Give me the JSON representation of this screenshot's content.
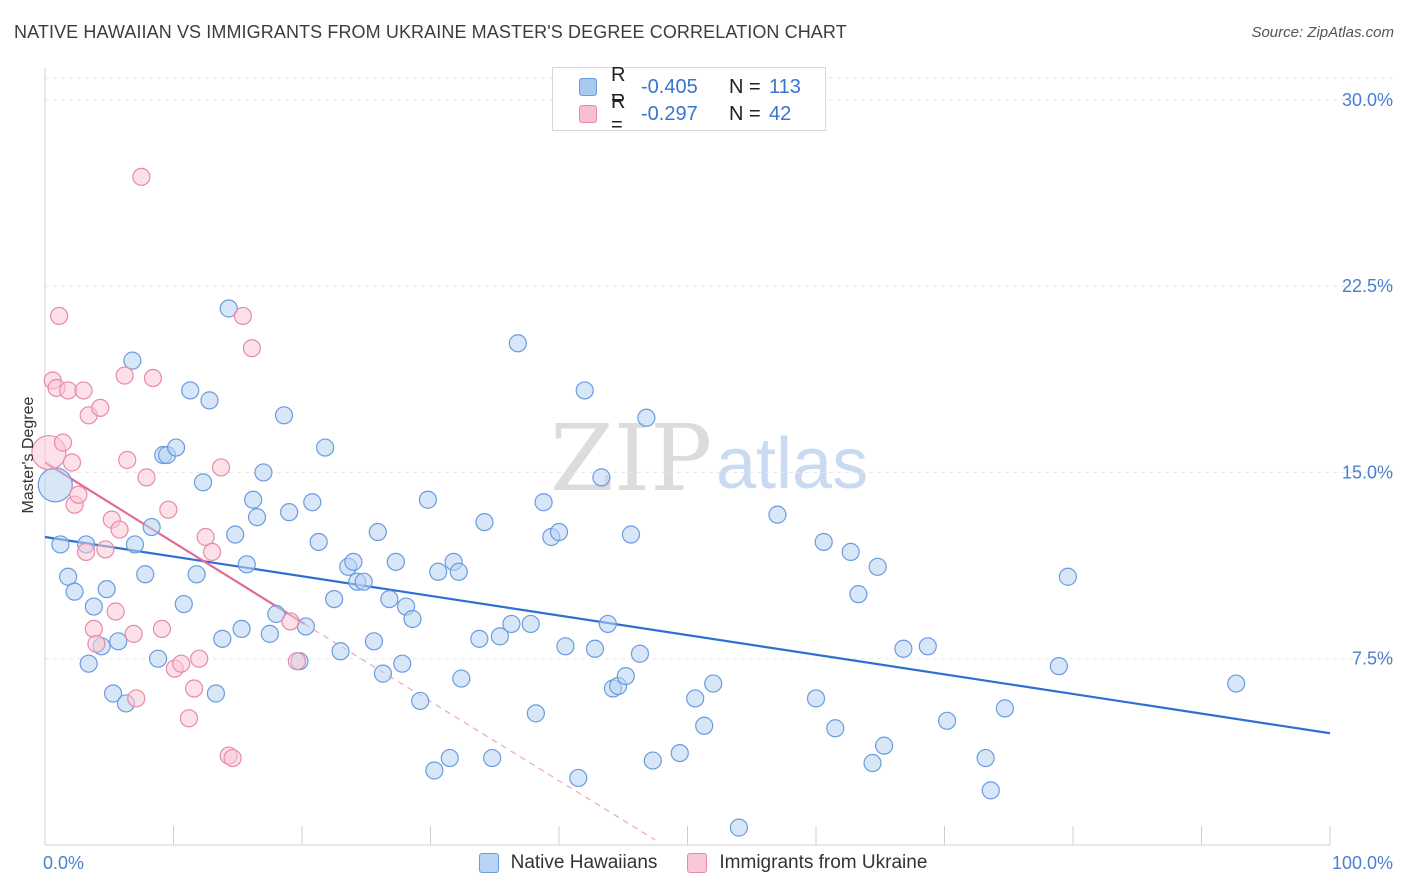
{
  "header": {
    "title": "NATIVE HAWAIIAN VS IMMIGRANTS FROM UKRAINE MASTER'S DEGREE CORRELATION CHART",
    "source": "Source: ZipAtlas.com"
  },
  "watermark": {
    "zip": "ZIP",
    "atlas": "atlas"
  },
  "legend": {
    "rows": [
      {
        "r_label": "R =",
        "r_value": "-0.405",
        "n_label": "N =",
        "n_value": "113",
        "color": "#a8c8f0",
        "border": "#6a9be0"
      },
      {
        "r_label": "R =",
        "r_value": "-0.297",
        "n_label": "N =",
        "n_value": "42",
        "color": "#f7bfd0",
        "border": "#e98aa8"
      }
    ]
  },
  "bottom_legend": {
    "items": [
      {
        "label": "Native Hawaiians",
        "color": "#b8d3f3",
        "border": "#6a9be0"
      },
      {
        "label": "Immigrants from Ukraine",
        "color": "#f9c8d6",
        "border": "#e98aa8"
      }
    ]
  },
  "chart_data": {
    "type": "scatter",
    "title": "NATIVE HAWAIIAN VS IMMIGRANTS FROM UKRAINE MASTER'S DEGREE CORRELATION CHART",
    "xlabel": "",
    "ylabel": "Master's Degree",
    "xlim": [
      0,
      100
    ],
    "ylim": [
      0,
      31
    ],
    "x_tick_labels": [
      "0.0%",
      "100.0%"
    ],
    "y_ticks": [
      7.5,
      15.0,
      22.5,
      30.0
    ],
    "y_tick_labels": [
      "7.5%",
      "15.0%",
      "22.5%",
      "30.0%"
    ],
    "grid": true,
    "legend_position": "top-center",
    "series": [
      {
        "name": "Native Hawaiians",
        "color": "#6a9be0",
        "fill": "#b8d3f3",
        "trend": {
          "x": [
            0,
            100
          ],
          "y": [
            12.4,
            4.5
          ],
          "color": "#2f6fd0"
        },
        "points": [
          [
            0.8,
            14.5
          ],
          [
            1.2,
            12.1
          ],
          [
            1.8,
            10.8
          ],
          [
            2.3,
            10.2
          ],
          [
            3.2,
            12.1
          ],
          [
            3.4,
            7.3
          ],
          [
            3.8,
            9.6
          ],
          [
            4.4,
            8.0
          ],
          [
            4.8,
            10.3
          ],
          [
            5.3,
            6.1
          ],
          [
            5.7,
            8.2
          ],
          [
            6.3,
            5.7
          ],
          [
            6.8,
            19.5
          ],
          [
            7.0,
            12.1
          ],
          [
            7.8,
            10.9
          ],
          [
            8.3,
            12.8
          ],
          [
            8.8,
            7.5
          ],
          [
            9.2,
            15.7
          ],
          [
            9.5,
            15.7
          ],
          [
            10.2,
            16.0
          ],
          [
            10.8,
            9.7
          ],
          [
            11.3,
            18.3
          ],
          [
            11.8,
            10.9
          ],
          [
            12.3,
            14.6
          ],
          [
            12.8,
            17.9
          ],
          [
            13.3,
            6.1
          ],
          [
            13.8,
            8.3
          ],
          [
            14.3,
            21.6
          ],
          [
            14.8,
            12.5
          ],
          [
            15.3,
            8.7
          ],
          [
            15.7,
            11.3
          ],
          [
            16.2,
            13.9
          ],
          [
            16.5,
            13.2
          ],
          [
            17.0,
            15.0
          ],
          [
            17.5,
            8.5
          ],
          [
            18.0,
            9.3
          ],
          [
            18.6,
            17.3
          ],
          [
            19.0,
            13.4
          ],
          [
            19.8,
            7.4
          ],
          [
            20.3,
            8.8
          ],
          [
            20.8,
            13.8
          ],
          [
            21.3,
            12.2
          ],
          [
            21.8,
            16.0
          ],
          [
            22.5,
            9.9
          ],
          [
            23.0,
            7.8
          ],
          [
            23.6,
            11.2
          ],
          [
            24.0,
            11.4
          ],
          [
            24.3,
            10.6
          ],
          [
            24.8,
            10.6
          ],
          [
            25.6,
            8.2
          ],
          [
            25.9,
            12.6
          ],
          [
            26.3,
            6.9
          ],
          [
            26.8,
            9.9
          ],
          [
            27.3,
            11.4
          ],
          [
            27.8,
            7.3
          ],
          [
            28.1,
            9.6
          ],
          [
            28.6,
            9.1
          ],
          [
            29.2,
            5.8
          ],
          [
            29.8,
            13.9
          ],
          [
            30.3,
            3.0
          ],
          [
            30.6,
            11.0
          ],
          [
            31.5,
            3.5
          ],
          [
            31.8,
            11.4
          ],
          [
            32.2,
            11.0
          ],
          [
            32.4,
            6.7
          ],
          [
            33.8,
            8.3
          ],
          [
            34.2,
            13.0
          ],
          [
            34.8,
            3.5
          ],
          [
            35.4,
            8.4
          ],
          [
            36.3,
            8.9
          ],
          [
            36.8,
            20.2
          ],
          [
            37.8,
            8.9
          ],
          [
            38.2,
            5.3
          ],
          [
            38.8,
            13.8
          ],
          [
            39.4,
            12.4
          ],
          [
            40.0,
            12.6
          ],
          [
            40.5,
            8.0
          ],
          [
            41.5,
            2.7
          ],
          [
            42.0,
            18.3
          ],
          [
            42.8,
            7.9
          ],
          [
            43.3,
            14.8
          ],
          [
            43.8,
            8.9
          ],
          [
            44.2,
            6.3
          ],
          [
            44.6,
            6.4
          ],
          [
            45.2,
            6.8
          ],
          [
            45.6,
            12.5
          ],
          [
            46.3,
            7.7
          ],
          [
            46.8,
            17.2
          ],
          [
            47.3,
            3.4
          ],
          [
            49.4,
            3.7
          ],
          [
            50.6,
            5.9
          ],
          [
            51.3,
            4.8
          ],
          [
            52.0,
            6.5
          ],
          [
            54.0,
            0.7
          ],
          [
            57.0,
            13.3
          ],
          [
            60.0,
            5.9
          ],
          [
            60.6,
            12.2
          ],
          [
            61.5,
            4.7
          ],
          [
            62.7,
            11.8
          ],
          [
            63.3,
            10.1
          ],
          [
            64.4,
            3.3
          ],
          [
            64.8,
            11.2
          ],
          [
            65.3,
            4.0
          ],
          [
            66.8,
            7.9
          ],
          [
            68.7,
            8.0
          ],
          [
            70.2,
            5.0
          ],
          [
            73.2,
            3.5
          ],
          [
            73.6,
            2.2
          ],
          [
            74.7,
            5.5
          ],
          [
            78.9,
            7.2
          ],
          [
            79.6,
            10.8
          ],
          [
            92.7,
            6.5
          ]
        ]
      },
      {
        "name": "Immigrants from Ukraine",
        "color": "#e98aa8",
        "fill": "#f9c8d6",
        "trend": {
          "x": [
            0,
            20.2
          ],
          "y": [
            15.4,
            8.9
          ],
          "color": "#e06b95"
        },
        "trend_extension": {
          "x": [
            20.2,
            47.5
          ],
          "y": [
            8.9,
            0.2
          ]
        },
        "points": [
          [
            0.3,
            15.8
          ],
          [
            0.6,
            18.7
          ],
          [
            0.9,
            18.4
          ],
          [
            1.1,
            21.3
          ],
          [
            1.4,
            16.2
          ],
          [
            1.8,
            18.3
          ],
          [
            2.1,
            15.4
          ],
          [
            2.3,
            13.7
          ],
          [
            2.6,
            14.1
          ],
          [
            3.0,
            18.3
          ],
          [
            3.2,
            11.8
          ],
          [
            3.4,
            17.3
          ],
          [
            3.8,
            8.7
          ],
          [
            4.0,
            8.1
          ],
          [
            4.3,
            17.6
          ],
          [
            4.7,
            11.9
          ],
          [
            5.2,
            13.1
          ],
          [
            5.5,
            9.4
          ],
          [
            5.8,
            12.7
          ],
          [
            6.2,
            18.9
          ],
          [
            6.4,
            15.5
          ],
          [
            6.9,
            8.5
          ],
          [
            7.1,
            5.9
          ],
          [
            7.5,
            26.9
          ],
          [
            7.9,
            14.8
          ],
          [
            8.4,
            18.8
          ],
          [
            9.1,
            8.7
          ],
          [
            9.6,
            13.5
          ],
          [
            10.1,
            7.1
          ],
          [
            10.6,
            7.3
          ],
          [
            11.2,
            5.1
          ],
          [
            11.6,
            6.3
          ],
          [
            12.0,
            7.5
          ],
          [
            12.5,
            12.4
          ],
          [
            13.0,
            11.8
          ],
          [
            13.7,
            15.2
          ],
          [
            14.3,
            3.6
          ],
          [
            14.6,
            3.5
          ],
          [
            15.4,
            21.3
          ],
          [
            16.1,
            20.0
          ],
          [
            19.6,
            7.4
          ],
          [
            19.1,
            9.0
          ]
        ]
      }
    ]
  }
}
